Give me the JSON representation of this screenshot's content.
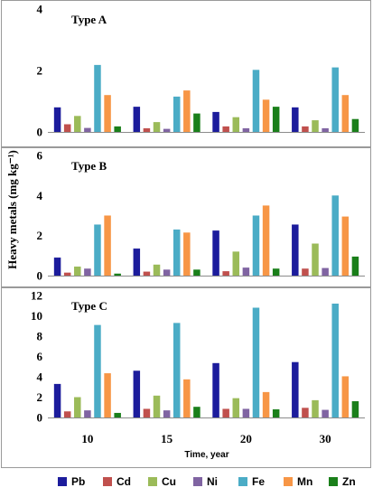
{
  "chart_data": {
    "type": "bar",
    "ylabel": "Heavy metals (mg kg⁻¹)",
    "xlabel": "Time, year",
    "categories": [
      "10",
      "15",
      "20",
      "30"
    ],
    "series_names": [
      "Pb",
      "Cd",
      "Cu",
      "Ni",
      "Fe",
      "Mn",
      "Zn"
    ],
    "colors": {
      "Pb": "#1c1c9c",
      "Cd": "#c0504d",
      "Cu": "#9bbb59",
      "Ni": "#8064a2",
      "Fe": "#4bacc6",
      "Mn": "#f79646",
      "Zn": "#1a7f1a"
    },
    "legend_position": "bottom",
    "panels": [
      {
        "title": "Type A",
        "ylim": [
          0,
          4
        ],
        "yticks": [
          0,
          2,
          4
        ],
        "series": [
          {
            "name": "Pb",
            "values": [
              0.8,
              0.82,
              0.65,
              0.8
            ]
          },
          {
            "name": "Cd",
            "values": [
              0.25,
              0.12,
              0.18,
              0.18
            ]
          },
          {
            "name": "Cu",
            "values": [
              0.52,
              0.32,
              0.48,
              0.38
            ]
          },
          {
            "name": "Ni",
            "values": [
              0.13,
              0.1,
              0.12,
              0.12
            ]
          },
          {
            "name": "Fe",
            "values": [
              2.18,
              1.15,
              2.02,
              2.1
            ]
          },
          {
            "name": "Mn",
            "values": [
              1.2,
              1.35,
              1.05,
              1.2
            ]
          },
          {
            "name": "Zn",
            "values": [
              0.18,
              0.6,
              0.82,
              0.42
            ]
          }
        ]
      },
      {
        "title": "Type B",
        "ylim": [
          0,
          6
        ],
        "yticks": [
          0,
          2,
          4,
          6
        ],
        "series": [
          {
            "name": "Pb",
            "values": [
              0.9,
              1.35,
              2.25,
              2.55
            ]
          },
          {
            "name": "Cd",
            "values": [
              0.15,
              0.2,
              0.22,
              0.35
            ]
          },
          {
            "name": "Cu",
            "values": [
              0.45,
              0.55,
              1.2,
              1.6
            ]
          },
          {
            "name": "Ni",
            "values": [
              0.35,
              0.3,
              0.4,
              0.38
            ]
          },
          {
            "name": "Fe",
            "values": [
              2.55,
              2.3,
              3.0,
              4.0
            ]
          },
          {
            "name": "Mn",
            "values": [
              3.0,
              2.15,
              3.5,
              2.95
            ]
          },
          {
            "name": "Zn",
            "values": [
              0.1,
              0.3,
              0.35,
              0.95
            ]
          }
        ]
      },
      {
        "title": "Type C",
        "ylim": [
          0,
          12
        ],
        "yticks": [
          0,
          2,
          4,
          6,
          8,
          10,
          12
        ],
        "series": [
          {
            "name": "Pb",
            "values": [
              3.3,
              4.6,
              5.35,
              5.45
            ]
          },
          {
            "name": "Cd",
            "values": [
              0.6,
              0.85,
              0.85,
              0.95
            ]
          },
          {
            "name": "Cu",
            "values": [
              2.0,
              2.15,
              1.9,
              1.7
            ]
          },
          {
            "name": "Ni",
            "values": [
              0.7,
              0.7,
              0.85,
              0.75
            ]
          },
          {
            "name": "Fe",
            "values": [
              9.1,
              9.3,
              10.8,
              11.2
            ]
          },
          {
            "name": "Mn",
            "values": [
              4.35,
              3.75,
              2.5,
              4.05
            ]
          },
          {
            "name": "Zn",
            "values": [
              0.45,
              1.05,
              0.8,
              1.6
            ]
          }
        ]
      }
    ]
  }
}
